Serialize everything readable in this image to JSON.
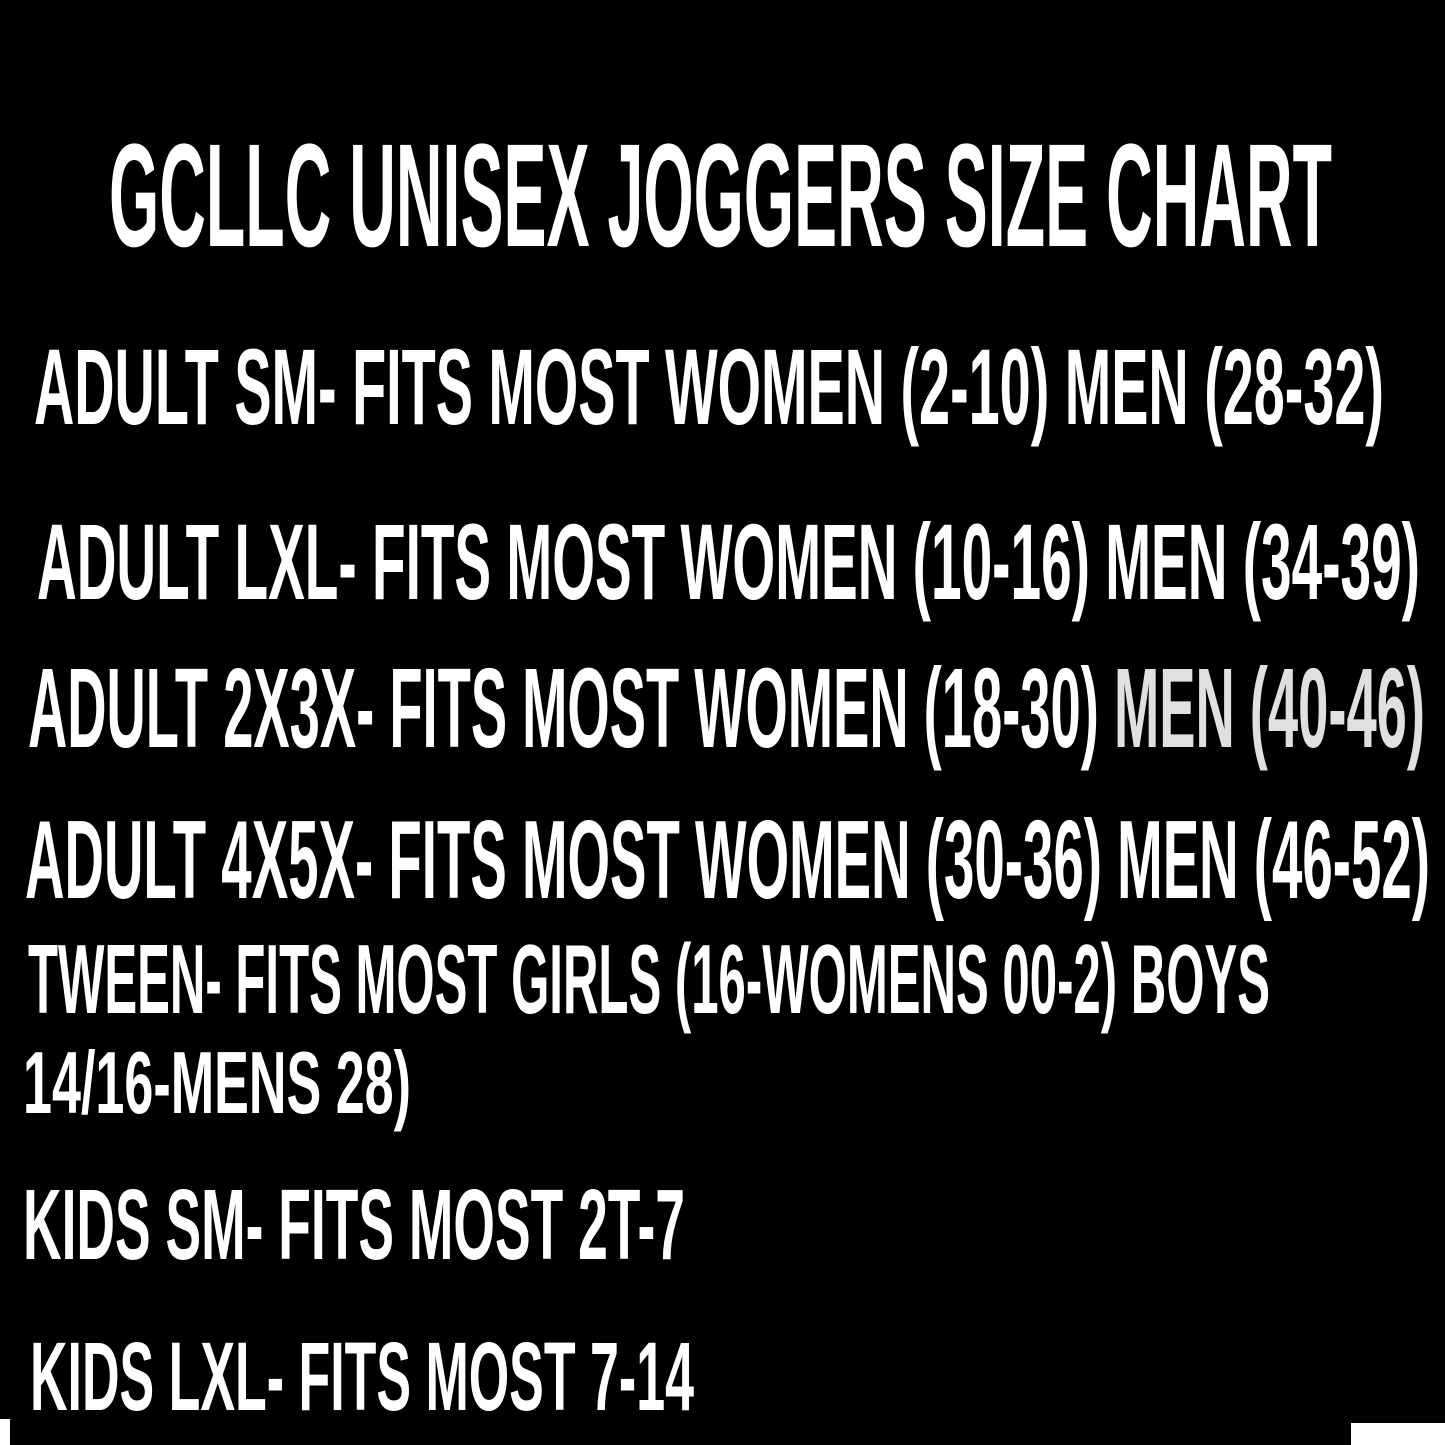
{
  "page": {
    "background_color": "#000000",
    "text_color": "#ffffff",
    "dim_text_color": "#e0e0e0"
  },
  "title": {
    "text": "GCLLC UNISEX JOGGERS SIZE CHART"
  },
  "rows": [
    {
      "text": "ADULT SM- FITS MOST WOMEN (2-10) MEN (28-32)"
    },
    {
      "text": "ADULT LXL- FITS MOST WOMEN (10-16) MEN (34-39)"
    },
    {
      "text": "ADULT 2X3X- FITS MOST WOMEN (18-30)",
      "text_dim": " MEN (40-46)"
    },
    {
      "text": "ADULT 4X5X- FITS MOST WOMEN (30-36) MEN (46-52)"
    },
    {
      "text": "TWEEN- FITS MOST GIRLS (16-WOMENS 00-2) BOYS"
    },
    {
      "text": "14/16-MENS 28)"
    },
    {
      "text": "KIDS SM- FITS MOST 2T-7"
    },
    {
      "text": "KIDS LXL- FITS MOST 7-14"
    }
  ]
}
